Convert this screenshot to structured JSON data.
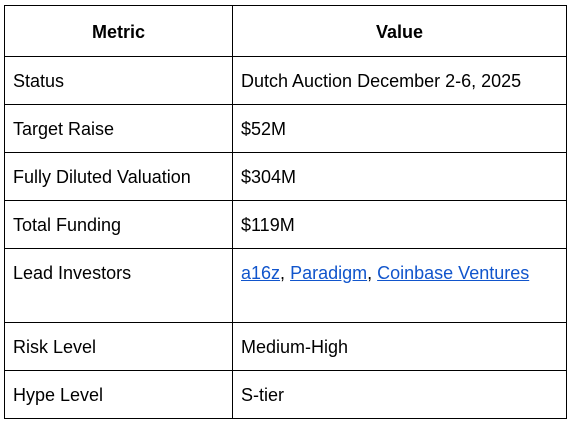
{
  "table": {
    "headers": [
      "Metric",
      "Value"
    ],
    "rows": [
      {
        "metric": "Status",
        "value": "Dutch Auction December 2-6, 2025"
      },
      {
        "metric": "Target Raise",
        "value": "$52M"
      },
      {
        "metric": "Fully Diluted Valuation",
        "value": "$304M"
      },
      {
        "metric": "Total Funding",
        "value": "$119M"
      },
      {
        "metric": "Lead Investors",
        "links": [
          "a16z",
          "Paradigm",
          "Coinbase Ventures"
        ],
        "separator": ", "
      },
      {
        "metric": "Risk Level",
        "value": "Medium-High"
      },
      {
        "metric": "Hype Level",
        "value": "S-tier"
      }
    ]
  },
  "colors": {
    "link": "#1155cc",
    "border": "#000000",
    "text": "#000000"
  }
}
